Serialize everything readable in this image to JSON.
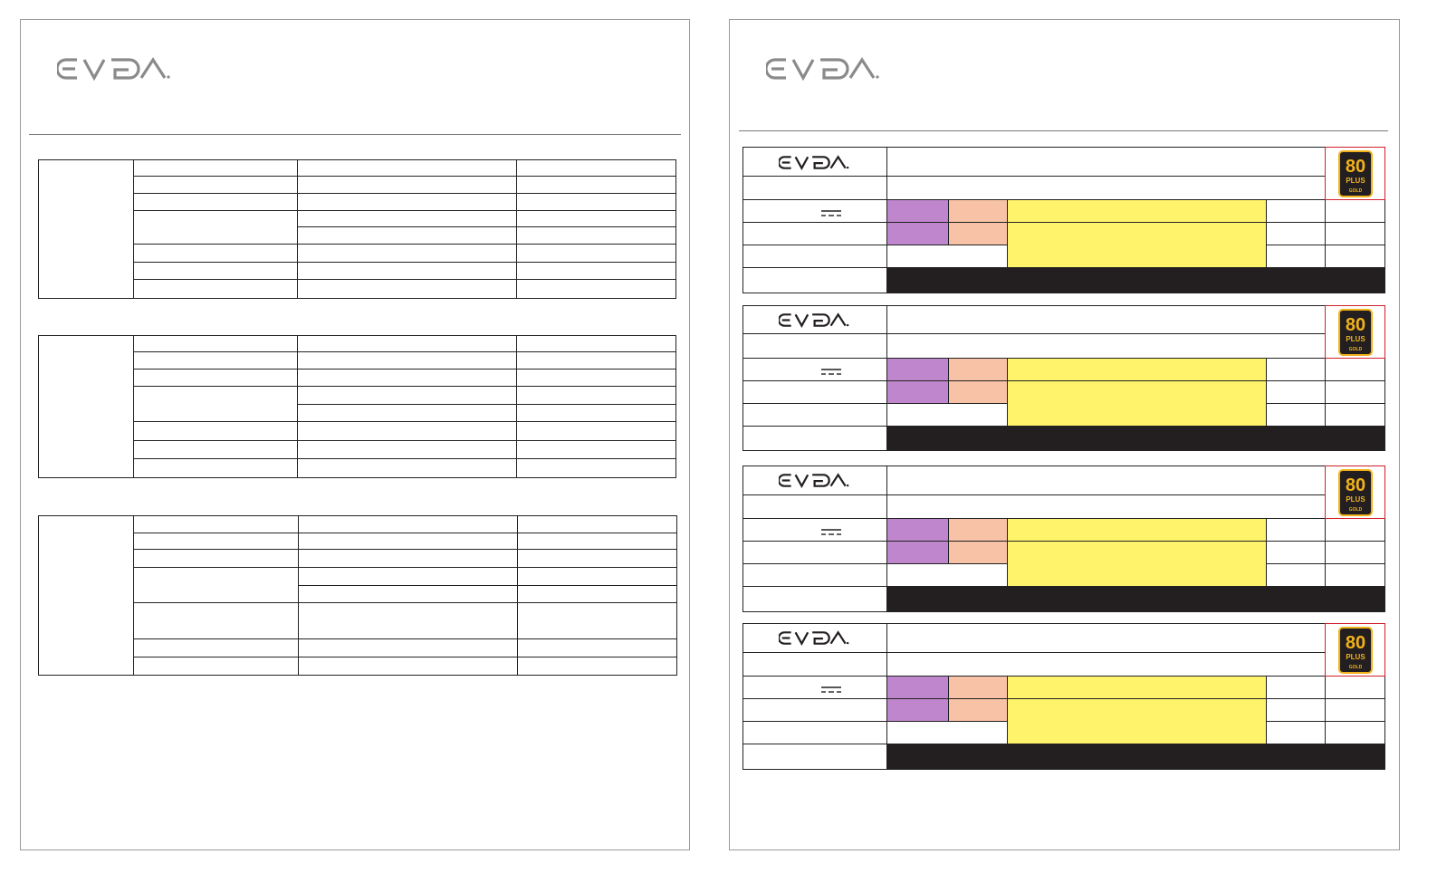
{
  "brand": {
    "name": "EVGA",
    "logo_color": "#8a8a8a",
    "label_logo_color": "#231f20"
  },
  "certification_badge": {
    "line1": "80",
    "line2": "PLUS",
    "line3": "GOLD",
    "accent": "#f2b21c",
    "frame": "#d0202a"
  },
  "colors": {
    "purple": "#bf86cd",
    "peach": "#f7c2a5",
    "yellow": "#fef36a",
    "black": "#231f20"
  },
  "icons": {
    "dc_symbol": "dc-current-icon"
  },
  "spec_tables": [
    {},
    {},
    {}
  ],
  "labels": [
    {},
    {},
    {},
    {}
  ]
}
